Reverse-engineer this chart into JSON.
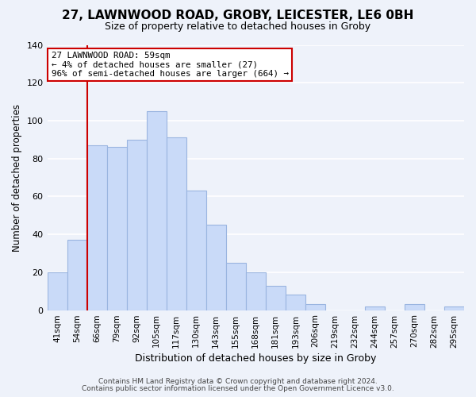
{
  "title": "27, LAWNWOOD ROAD, GROBY, LEICESTER, LE6 0BH",
  "subtitle": "Size of property relative to detached houses in Groby",
  "xlabel": "Distribution of detached houses by size in Groby",
  "ylabel": "Number of detached properties",
  "bar_labels": [
    "41sqm",
    "54sqm",
    "66sqm",
    "79sqm",
    "92sqm",
    "105sqm",
    "117sqm",
    "130sqm",
    "143sqm",
    "155sqm",
    "168sqm",
    "181sqm",
    "193sqm",
    "206sqm",
    "219sqm",
    "232sqm",
    "244sqm",
    "257sqm",
    "270sqm",
    "282sqm",
    "295sqm"
  ],
  "bar_values": [
    20,
    37,
    87,
    86,
    90,
    105,
    91,
    63,
    45,
    25,
    20,
    13,
    8,
    3,
    0,
    0,
    2,
    0,
    3,
    0,
    2
  ],
  "bar_color": "#c9daf8",
  "bar_edge_color": "#9ab5e0",
  "ylim": [
    0,
    140
  ],
  "yticks": [
    0,
    20,
    40,
    60,
    80,
    100,
    120,
    140
  ],
  "annotation_line_label": "27 LAWNWOOD ROAD: 59sqm",
  "annotation_smaller": "← 4% of detached houses are smaller (27)",
  "annotation_larger": "96% of semi-detached houses are larger (664) →",
  "annotation_box_color": "#ffffff",
  "annotation_box_edge_color": "#cc0000",
  "red_line_color": "#cc0000",
  "footer1": "Contains HM Land Registry data © Crown copyright and database right 2024.",
  "footer2": "Contains public sector information licensed under the Open Government Licence v3.0.",
  "background_color": "#eef2fa",
  "grid_color": "#ffffff"
}
